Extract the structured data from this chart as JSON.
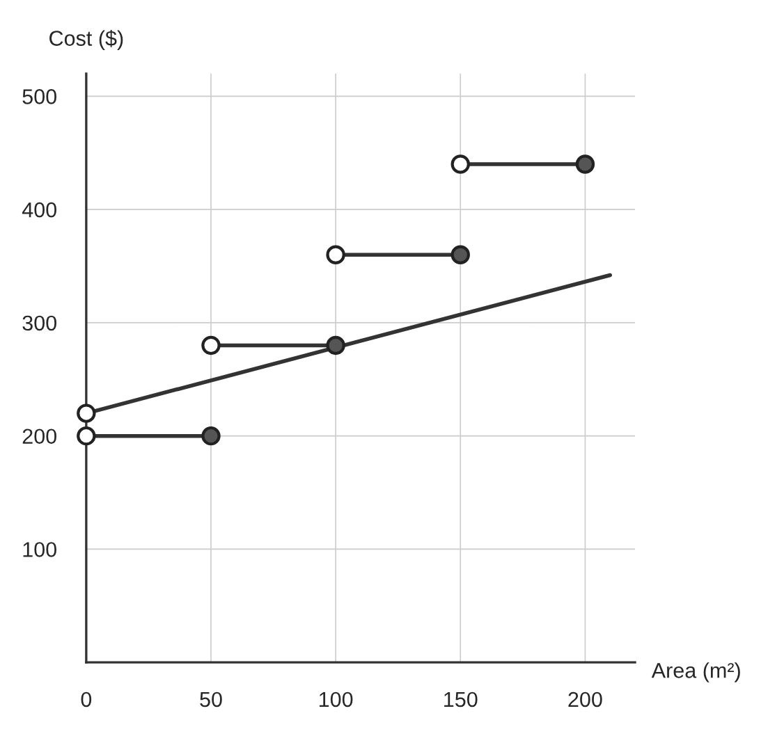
{
  "chart_data": {
    "type": "line",
    "xlabel": "Area (m²)",
    "ylabel": "Cost ($)",
    "xlim": [
      0,
      220
    ],
    "ylim": [
      0,
      520
    ],
    "xticks": [
      0,
      50,
      100,
      150,
      200
    ],
    "yticks": [
      100,
      200,
      300,
      400,
      500
    ],
    "grid": true,
    "legend": false,
    "series": [
      {
        "color": "#333333",
        "x": [
          0,
          50
        ],
        "values": [
          200,
          200
        ],
        "marker": "none"
      },
      {
        "color": "#333333",
        "x": [
          50,
          100
        ],
        "values": [
          280,
          280
        ],
        "marker": "none"
      },
      {
        "color": "#333333",
        "x": [
          100,
          150
        ],
        "values": [
          360,
          360
        ],
        "marker": "none"
      },
      {
        "color": "#333333",
        "x": [
          150,
          200
        ],
        "values": [
          440,
          440
        ],
        "marker": "none"
      },
      {
        "color": "#333333",
        "x": [
          0,
          210
        ],
        "values": [
          220,
          342
        ],
        "marker": "none"
      },
      {
        "type": "scatter",
        "color": "#ffffff",
        "x": [
          0,
          0,
          50,
          100,
          150
        ],
        "values": [
          220,
          200,
          280,
          360,
          440
        ],
        "marker": "circle"
      },
      {
        "type": "scatter",
        "color": "#555555",
        "x": [
          50,
          100,
          150,
          200
        ],
        "values": [
          200,
          280,
          360,
          440
        ],
        "marker": "circle"
      }
    ]
  }
}
